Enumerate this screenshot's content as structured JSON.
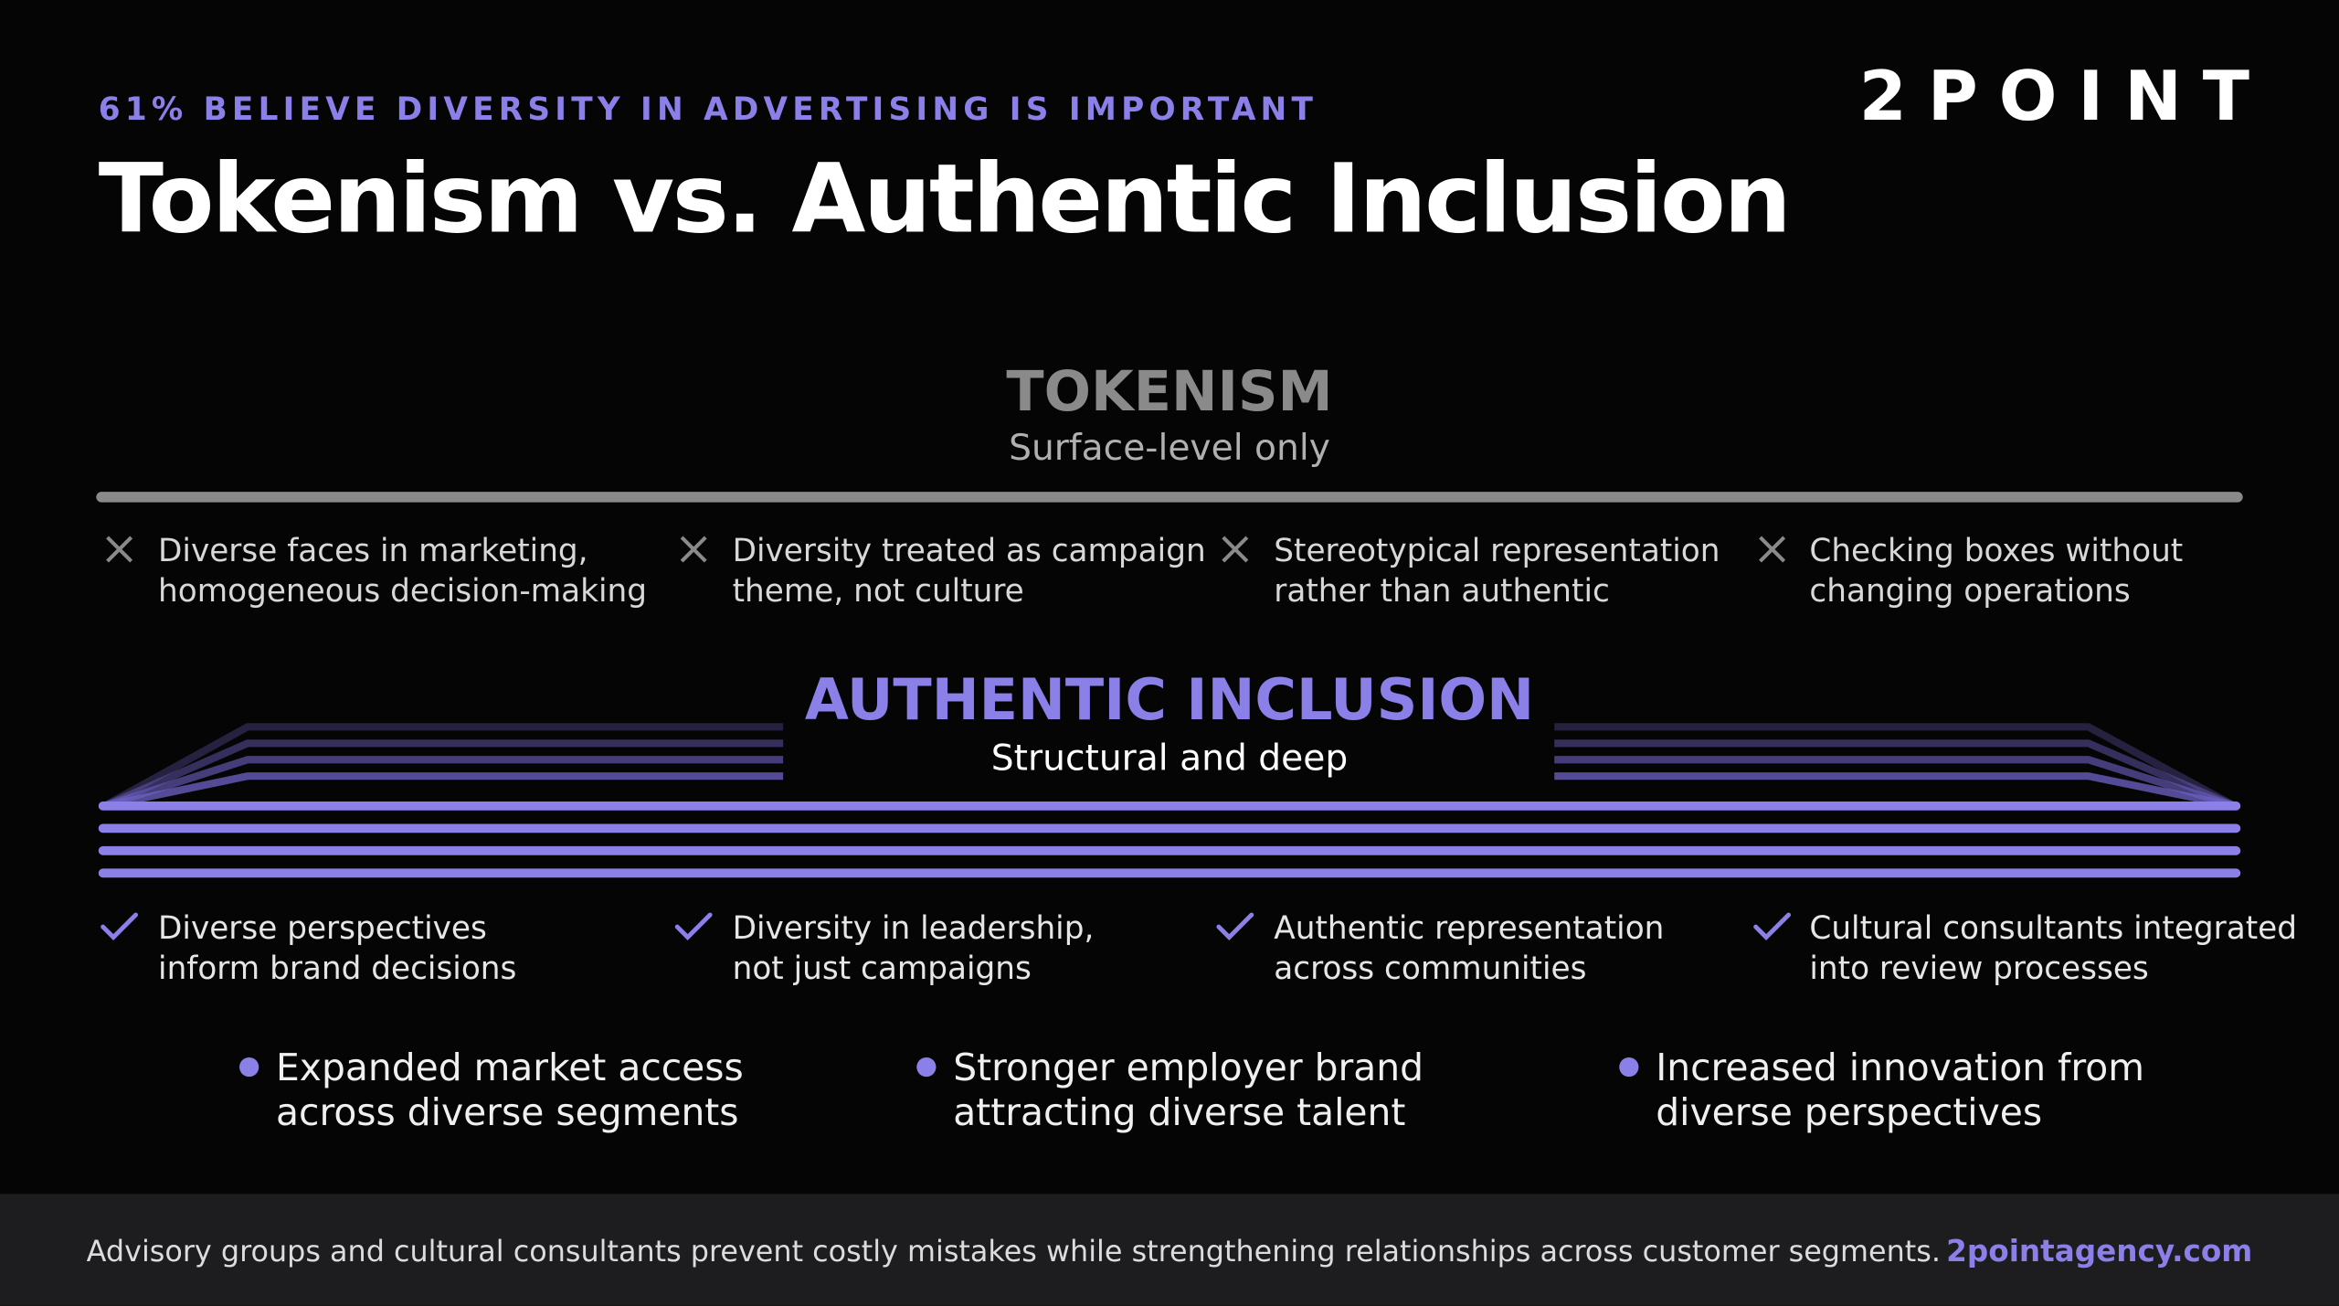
{
  "header": {
    "kicker": "61% BELIEVE DIVERSITY IN ADVERTISING IS IMPORTANT",
    "title": "Tokenism vs. Authentic Inclusion",
    "logo": "2POINT"
  },
  "tokenism": {
    "title": "TOKENISM",
    "subtitle": "Surface-level only",
    "items": [
      [
        "Diverse faces in marketing,",
        "homogeneous decision-making"
      ],
      [
        "Diversity treated as campaign",
        "theme, not culture"
      ],
      [
        "Stereotypical representation",
        "rather than authentic"
      ],
      [
        "Checking boxes without",
        "changing operations"
      ]
    ]
  },
  "inclusion": {
    "title": "AUTHENTIC INCLUSION",
    "subtitle": "Structural and deep",
    "items": [
      [
        "Diverse perspectives",
        "inform brand decisions"
      ],
      [
        "Diversity in leadership,",
        "not just campaigns"
      ],
      [
        "Authentic representation",
        "across communities"
      ],
      [
        "Cultural consultants integrated",
        "into review processes"
      ]
    ]
  },
  "benefits": [
    [
      "Expanded market access",
      "across diverse segments"
    ],
    [
      "Stronger employer brand",
      "attracting diverse talent"
    ],
    [
      "Increased innovation from",
      "diverse perspectives"
    ]
  ],
  "footer": {
    "text": "Advisory groups and cultural consultants prevent costly mistakes while strengthening relationships across customer segments.",
    "link": "2pointagency.com"
  }
}
